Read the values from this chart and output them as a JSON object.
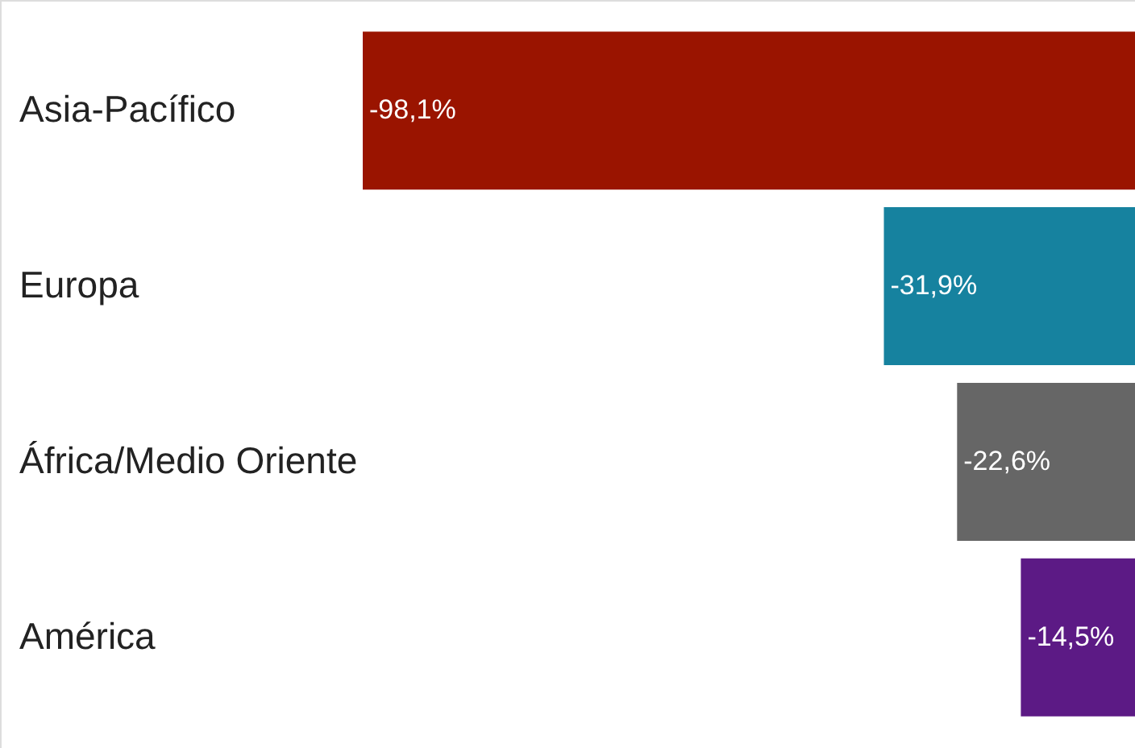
{
  "chart_data": {
    "type": "bar",
    "orientation": "horizontal",
    "categories": [
      "Asia-Pacífico",
      "Europa",
      "África/Medio Oriente",
      "América"
    ],
    "values": [
      -98.1,
      -31.9,
      -22.6,
      -14.5
    ],
    "colors": [
      "#9a1400",
      "#16829f",
      "#666666",
      "#5c1a85"
    ],
    "value_labels": [
      "-98,1%",
      "-31,9%",
      "-22,6%",
      "-14,5%"
    ]
  }
}
